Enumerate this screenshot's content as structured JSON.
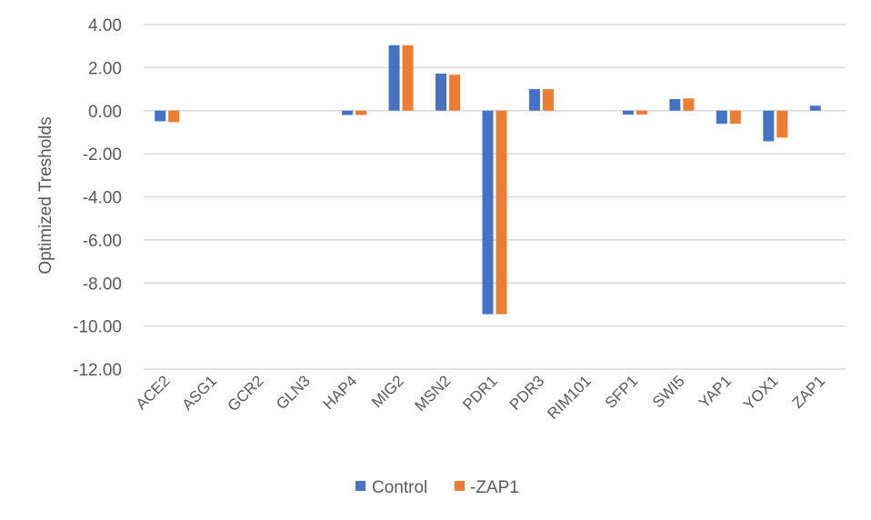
{
  "chart_data": {
    "type": "bar",
    "title": "",
    "xlabel": "",
    "ylabel": "Optimized Tresholds",
    "ylim": [
      -12,
      4
    ],
    "yticks": [
      4,
      2,
      0,
      -2,
      -4,
      -6,
      -8,
      -10,
      -12
    ],
    "ytick_labels": [
      "4.00",
      "2.00",
      "0.00",
      "-2.00",
      "-4.00",
      "-6.00",
      "-8.00",
      "-10.00",
      "-12.00"
    ],
    "grid": true,
    "legend_position": "bottom",
    "categories": [
      "ACE2",
      "ASG1",
      "GCR2",
      "GLN3",
      "HAP4",
      "MIG2",
      "MSN2",
      "PDR1",
      "PDR3",
      "RIM101",
      "SFP1",
      "SWI5",
      "YAP1",
      "YOX1",
      "ZAP1"
    ],
    "series": [
      {
        "name": "Control",
        "color": "#4472C4",
        "values": [
          -0.49,
          0,
          0,
          0,
          -0.2,
          3.04,
          1.72,
          -9.45,
          1.0,
          0,
          -0.18,
          0.54,
          -0.61,
          -1.42,
          0.23
        ]
      },
      {
        "name": "-ZAP1",
        "color": "#ED7D31",
        "values": [
          -0.53,
          0,
          0,
          0,
          -0.2,
          3.04,
          1.67,
          -9.45,
          1.0,
          0,
          -0.18,
          0.57,
          -0.61,
          -1.25,
          0
        ]
      }
    ]
  }
}
